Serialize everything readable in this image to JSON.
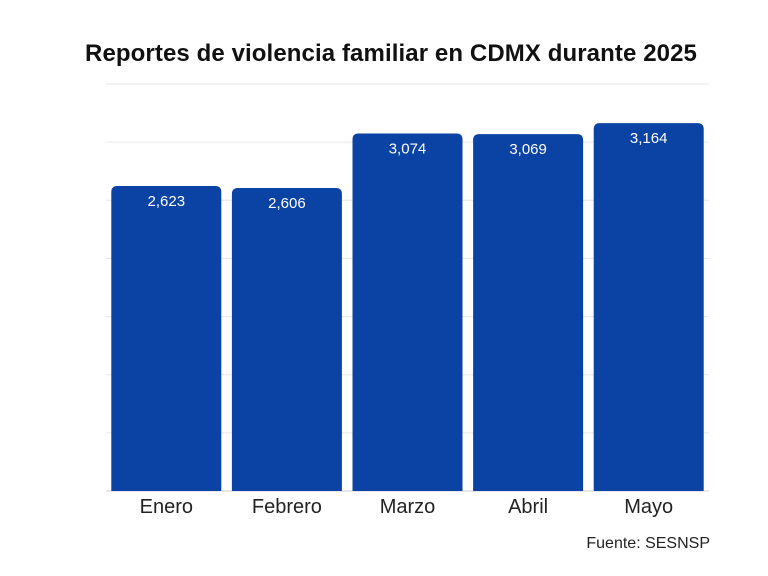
{
  "chart_data": {
    "type": "bar",
    "title": "Reportes de violencia familiar en CDMX durante 2025",
    "xlabel": "",
    "ylabel": "",
    "categories": [
      "Enero",
      "Febrero",
      "Marzo",
      "Abril",
      "Mayo"
    ],
    "values": [
      2623,
      2606,
      3074,
      3069,
      3164
    ],
    "value_labels": [
      "2,623",
      "2,606",
      "3,074",
      "3,069",
      "3,164"
    ],
    "ylim": [
      0,
      3500
    ],
    "grid": true,
    "bar_color": "#0a43a4",
    "label_color": "#ffffff"
  },
  "source": "Fuente: SESNSP"
}
